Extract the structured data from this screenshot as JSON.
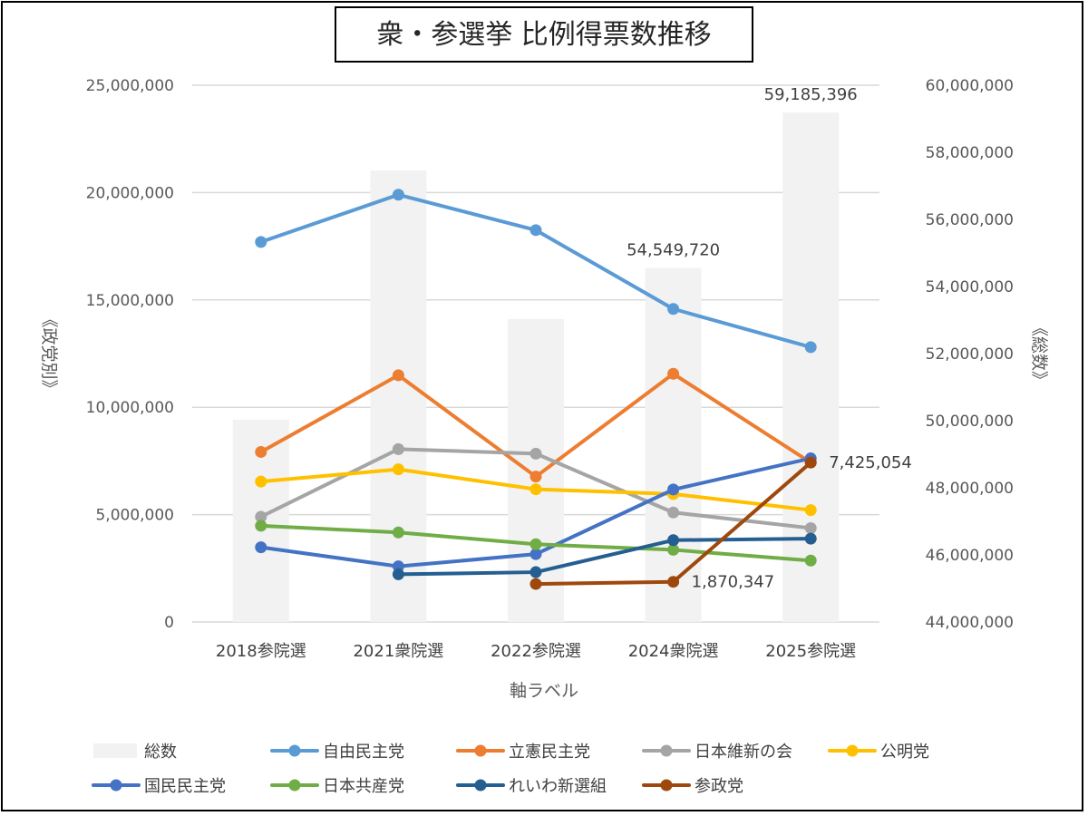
{
  "chart_data": {
    "type": "line",
    "title": "衆・参選挙 比例得票数推移",
    "xlabel": "軸ラベル",
    "ylabel": "《政党別》",
    "y2label": "《総数》",
    "categories": [
      "2018参院選",
      "2021衆院選",
      "2022参院選",
      "2024衆院選",
      "2025参院選"
    ],
    "ylim": [
      0,
      25000000
    ],
    "y_ticks": [
      "0",
      "5,000,000",
      "10,000,000",
      "15,000,000",
      "20,000,000",
      "25,000,000"
    ],
    "y2lim": [
      44000000,
      60000000
    ],
    "y2_ticks": [
      "44,000,000",
      "46,000,000",
      "48,000,000",
      "50,000,000",
      "52,000,000",
      "54,000,000",
      "56,000,000",
      "58,000,000",
      "60,000,000"
    ],
    "grid": true,
    "legend_position": "bottom",
    "bar_series": {
      "name": "総数",
      "axis": "secondary",
      "color": "#f2f2f2",
      "values": [
        50030000,
        57460000,
        53030000,
        54549720,
        59185396
      ]
    },
    "series": [
      {
        "name": "自由民主党",
        "color": "#5b9bd5",
        "values": [
          17700000,
          19900000,
          18250000,
          14580000,
          12800000
        ]
      },
      {
        "name": "立憲民主党",
        "color": "#ed7d31",
        "values": [
          7920000,
          11490000,
          6770000,
          11560000,
          7425054
        ]
      },
      {
        "name": "日本維新の会",
        "color": "#a5a5a5",
        "values": [
          4900000,
          8050000,
          7840000,
          5100000,
          4370000
        ]
      },
      {
        "name": "公明党",
        "color": "#ffc000",
        "values": [
          6540000,
          7110000,
          6180000,
          5960000,
          5210000
        ]
      },
      {
        "name": "国民民主党",
        "color": "#4472c4",
        "values": [
          3480000,
          2590000,
          3160000,
          6170000,
          7620000
        ]
      },
      {
        "name": "日本共産党",
        "color": "#70ad47",
        "values": [
          4480000,
          4170000,
          3620000,
          3360000,
          2860000
        ]
      },
      {
        "name": "れいわ新選組",
        "color": "#255e91",
        "values": [
          null,
          2220000,
          2320000,
          3810000,
          3880000
        ]
      },
      {
        "name": "参政党",
        "color": "#9e480e",
        "values": [
          null,
          null,
          1770000,
          1870347,
          7425054
        ]
      }
    ],
    "data_labels": [
      {
        "text": "59,185,396",
        "series": "総数",
        "category": "2025参院選"
      },
      {
        "text": "54,549,720",
        "series": "総数",
        "category": "2024衆院選"
      },
      {
        "text": "7,425,054",
        "series": "参政党",
        "category": "2025参院選"
      },
      {
        "text": "1,870,347",
        "series": "参政党",
        "category": "2024衆院選"
      }
    ],
    "legend_rows": [
      [
        "総数",
        "自由民主党",
        "立憲民主党",
        "日本維新の会",
        "公明党"
      ],
      [
        "国民民主党",
        "日本共産党",
        "れいわ新選組",
        "参政党"
      ]
    ]
  }
}
